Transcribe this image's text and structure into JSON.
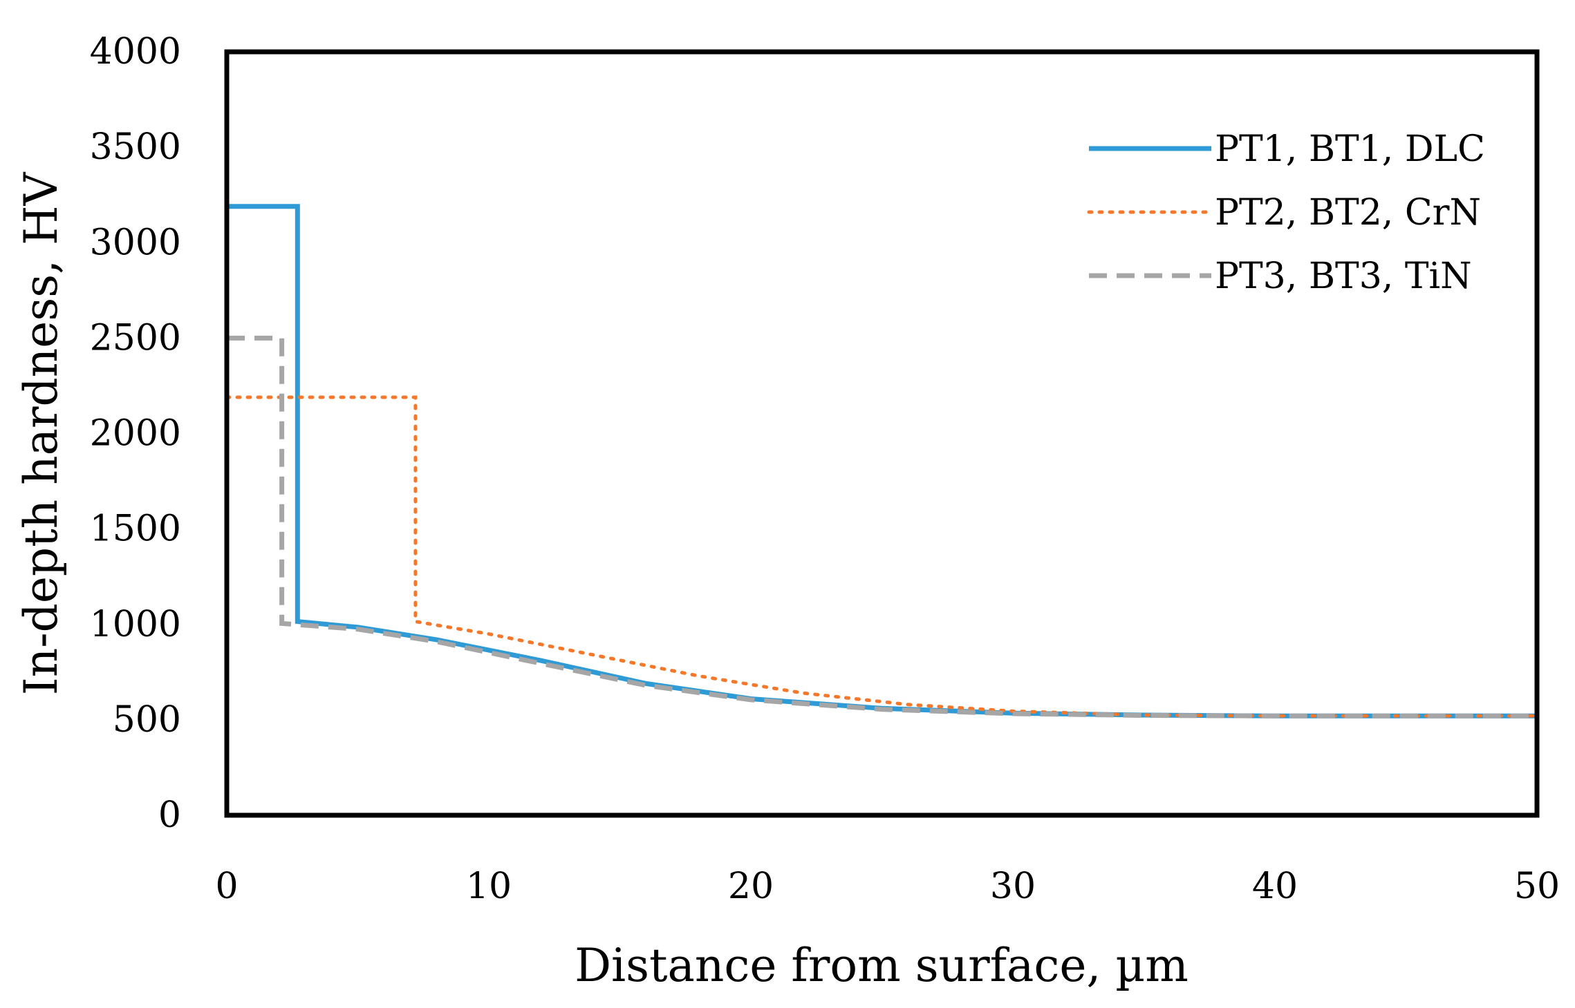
{
  "chart_data": {
    "type": "line",
    "xlabel": "Distance from surface, µm",
    "ylabel": "In-depth hardness, HV",
    "xlim": [
      0,
      50
    ],
    "ylim": [
      0,
      4000
    ],
    "xticks": [
      0,
      10,
      20,
      30,
      40,
      50
    ],
    "yticks": [
      0,
      500,
      1000,
      1500,
      2000,
      2500,
      3000,
      3500,
      4000
    ],
    "legend_position": "top-right",
    "grid": false,
    "series": [
      {
        "name": "PT1, BT1, DLC",
        "color": "#2e9bd6",
        "style": "solid",
        "points": [
          [
            0,
            3190
          ],
          [
            2.7,
            3190
          ],
          [
            2.7,
            1015
          ],
          [
            5,
            985
          ],
          [
            8,
            920
          ],
          [
            12,
            810
          ],
          [
            16,
            690
          ],
          [
            20,
            610
          ],
          [
            25,
            560
          ],
          [
            30,
            535
          ],
          [
            35,
            525
          ],
          [
            40,
            520
          ],
          [
            50,
            520
          ]
        ]
      },
      {
        "name": "PT2, BT2, CrN",
        "color": "#f5782a",
        "style": "dotted",
        "points": [
          [
            0,
            2190
          ],
          [
            7.2,
            2190
          ],
          [
            7.2,
            1015
          ],
          [
            10,
            950
          ],
          [
            14,
            840
          ],
          [
            18,
            730
          ],
          [
            22,
            640
          ],
          [
            26,
            580
          ],
          [
            30,
            545
          ],
          [
            35,
            525
          ],
          [
            40,
            520
          ],
          [
            50,
            520
          ]
        ]
      },
      {
        "name": "PT3, BT3, TiN",
        "color": "#a6a6a6",
        "style": "dashed",
        "points": [
          [
            0,
            2500
          ],
          [
            2.1,
            2500
          ],
          [
            2.1,
            1005
          ],
          [
            5,
            975
          ],
          [
            8,
            910
          ],
          [
            12,
            795
          ],
          [
            16,
            680
          ],
          [
            20,
            605
          ],
          [
            25,
            555
          ],
          [
            30,
            532
          ],
          [
            35,
            523
          ],
          [
            40,
            520
          ],
          [
            50,
            520
          ]
        ]
      }
    ]
  }
}
